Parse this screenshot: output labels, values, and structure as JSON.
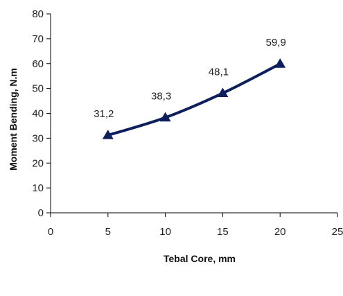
{
  "chart_data": {
    "type": "line",
    "title": "",
    "xlabel": "Tebal Core,  mm",
    "ylabel": "Moment Bending, N.m",
    "xlim": [
      0,
      25
    ],
    "ylim": [
      0,
      80
    ],
    "xticks": [
      "0",
      "5",
      "10",
      "15",
      "20",
      "25"
    ],
    "yticks": [
      "0",
      "10",
      "20",
      "30",
      "40",
      "50",
      "60",
      "70",
      "80"
    ],
    "grid": false,
    "legend": "none",
    "series": [
      {
        "x": [
          5,
          10,
          15,
          20
        ],
        "y": [
          31.2,
          38.3,
          48.1,
          59.9
        ],
        "data_labels": [
          "31,2",
          "38,3",
          "48,1",
          "59,9"
        ],
        "marker": "triangle",
        "color": "#0d1f5c"
      }
    ]
  }
}
